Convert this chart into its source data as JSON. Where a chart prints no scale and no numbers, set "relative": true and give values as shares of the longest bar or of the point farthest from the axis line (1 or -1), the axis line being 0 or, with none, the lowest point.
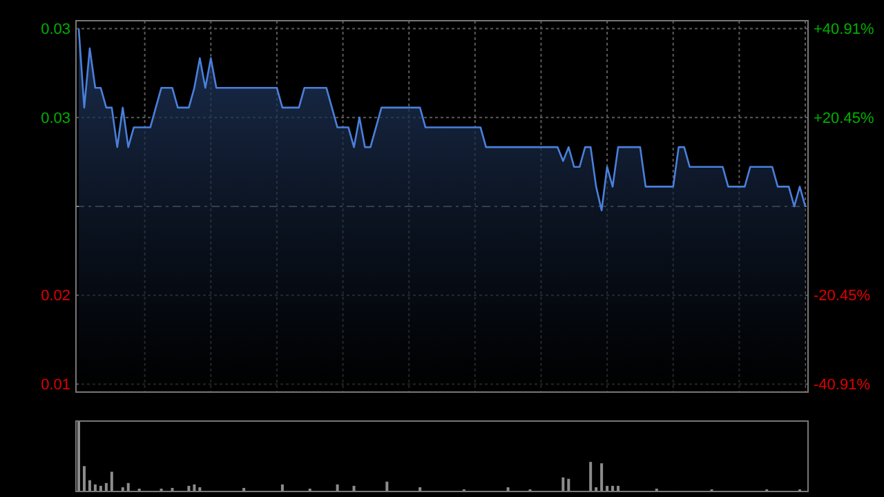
{
  "chart_data": [
    {
      "type": "area",
      "categories": [
        null,
        null,
        null,
        null,
        null,
        null,
        null,
        null,
        null,
        null,
        null,
        null,
        null,
        null,
        null,
        null,
        null,
        null,
        null,
        null,
        null,
        null,
        null,
        null,
        null,
        null,
        null,
        null,
        null,
        null,
        null,
        null,
        null,
        null,
        null,
        null,
        null,
        null,
        null,
        null,
        null,
        null,
        null,
        null,
        null,
        null,
        null,
        null,
        null,
        null,
        null,
        null,
        null,
        null,
        null,
        null,
        null,
        null,
        null,
        null,
        null,
        null,
        null,
        null,
        null,
        null,
        null,
        null,
        null,
        null,
        null,
        null,
        null,
        null,
        null,
        null,
        null,
        null,
        null,
        null,
        null,
        null,
        null,
        null,
        null,
        null,
        null,
        null,
        null,
        null,
        null,
        null,
        null,
        null,
        null,
        null,
        null,
        null,
        null,
        null,
        null,
        null,
        null,
        null,
        null,
        null,
        null,
        null,
        null,
        null,
        null,
        null,
        null,
        null,
        null,
        null,
        null,
        null,
        null,
        null,
        null,
        null,
        null,
        null,
        null,
        null,
        null,
        null,
        null,
        null,
        null,
        null,
        null
      ],
      "ylim": [
        0.0126,
        0.0314
      ],
      "yticks": [
        {
          "value": 0.031,
          "label": "0.03"
        },
        {
          "value": 0.0265,
          "label": "0.03"
        },
        {
          "value": 0.0175,
          "label": "0.02"
        },
        {
          "value": 0.013,
          "label": "0.01"
        }
      ],
      "y2lim": [
        -42.73,
        42.73
      ],
      "y2ticks": [
        {
          "value": 40.91,
          "label": "+40.91%"
        },
        {
          "value": 20.45,
          "label": "+20.45%"
        },
        {
          "value": -20.45,
          "label": "-20.45%"
        },
        {
          "value": -40.91,
          "label": "-40.91%"
        }
      ],
      "grid": true,
      "ref_lines": [
        {
          "axis": "y",
          "value": 0.022,
          "color": "#8a8a8a",
          "line_style": "dashed"
        }
      ],
      "series": [
        {
          "color": "#4a80dc",
          "values": [
            0.031,
            0.027,
            0.03,
            0.028,
            0.028,
            0.027,
            0.027,
            0.025,
            0.027,
            0.025,
            0.026,
            0.026,
            0.026,
            0.026,
            0.027,
            0.028,
            0.028,
            0.028,
            0.027,
            0.027,
            0.027,
            0.028,
            0.0295,
            0.028,
            0.0295,
            0.028,
            0.028,
            0.028,
            0.028,
            0.028,
            0.028,
            0.028,
            0.028,
            0.028,
            0.028,
            0.028,
            0.028,
            0.027,
            0.027,
            0.027,
            0.027,
            0.028,
            0.028,
            0.028,
            0.028,
            0.028,
            0.027,
            0.026,
            0.026,
            0.026,
            0.025,
            0.0265,
            0.025,
            0.025,
            0.026,
            0.027,
            0.027,
            0.027,
            0.027,
            0.027,
            0.027,
            0.027,
            0.027,
            0.026,
            0.026,
            0.026,
            0.026,
            0.026,
            0.026,
            0.026,
            0.026,
            0.026,
            0.026,
            0.026,
            0.025,
            0.025,
            0.025,
            0.025,
            0.025,
            0.025,
            0.025,
            0.025,
            0.025,
            0.025,
            0.025,
            0.025,
            0.025,
            0.025,
            0.0243,
            0.025,
            0.024,
            0.024,
            0.025,
            0.025,
            0.023,
            0.0218,
            0.024,
            0.023,
            0.025,
            0.025,
            0.025,
            0.025,
            0.025,
            0.023,
            0.023,
            0.023,
            0.023,
            0.023,
            0.023,
            0.025,
            0.025,
            0.024,
            0.024,
            0.024,
            0.024,
            0.024,
            0.024,
            0.024,
            0.023,
            0.023,
            0.023,
            0.023,
            0.024,
            0.024,
            0.024,
            0.024,
            0.024,
            0.023,
            0.023,
            0.023,
            0.022,
            0.023,
            0.022
          ]
        }
      ]
    },
    {
      "type": "bar",
      "relative": true,
      "color": "#8c8c8c",
      "categories": [
        null,
        null,
        null,
        null,
        null,
        null,
        null,
        null,
        null,
        null,
        null,
        null,
        null,
        null,
        null,
        null,
        null,
        null,
        null,
        null,
        null,
        null,
        null,
        null,
        null,
        null,
        null,
        null,
        null,
        null,
        null,
        null,
        null,
        null,
        null,
        null,
        null,
        null,
        null,
        null,
        null,
        null,
        null,
        null,
        null,
        null,
        null,
        null,
        null,
        null,
        null,
        null,
        null,
        null,
        null,
        null,
        null,
        null,
        null,
        null,
        null,
        null,
        null,
        null,
        null,
        null,
        null,
        null,
        null,
        null,
        null,
        null,
        null,
        null,
        null,
        null,
        null,
        null,
        null,
        null,
        null,
        null,
        null,
        null,
        null,
        null,
        null,
        null,
        null,
        null,
        null,
        null,
        null,
        null,
        null,
        null,
        null,
        null,
        null,
        null,
        null,
        null,
        null,
        null,
        null,
        null,
        null,
        null,
        null,
        null,
        null,
        null,
        null,
        null,
        null,
        null,
        null,
        null,
        null,
        null,
        null,
        null,
        null,
        null,
        null,
        null,
        null,
        null,
        null,
        null,
        null,
        null,
        null
      ],
      "values": [
        1.0,
        0.36,
        0.16,
        0.1,
        0.08,
        0.12,
        0.28,
        0.01,
        0.06,
        0.12,
        0.01,
        0.04,
        0.01,
        0.01,
        0.01,
        0.04,
        0.01,
        0.05,
        0.01,
        0.01,
        0.08,
        0.1,
        0.06,
        0.01,
        0.01,
        0.01,
        0.01,
        0.01,
        0.01,
        0.01,
        0.05,
        0.01,
        0.01,
        0.01,
        0.01,
        0.01,
        0.01,
        0.1,
        0.01,
        0.01,
        0.01,
        0.01,
        0.04,
        0.01,
        0.01,
        0.01,
        0.01,
        0.1,
        0.01,
        0.01,
        0.08,
        0.01,
        0.01,
        0.01,
        0.01,
        0.01,
        0.14,
        0.01,
        0.01,
        0.01,
        0.01,
        0.01,
        0.06,
        0.01,
        0.01,
        0.01,
        0.01,
        0.01,
        0.01,
        0.01,
        0.03,
        0.01,
        0.01,
        0.01,
        0.01,
        0.01,
        0.01,
        0.01,
        0.06,
        0.01,
        0.01,
        0.01,
        0.03,
        0.01,
        0.01,
        0.01,
        0.01,
        0.01,
        0.2,
        0.18,
        0.01,
        0.01,
        0.01,
        0.42,
        0.06,
        0.4,
        0.08,
        0.08,
        0.08,
        0.01,
        0.01,
        0.01,
        0.01,
        0.01,
        0.01,
        0.04,
        0.01,
        0.01,
        0.01,
        0.01,
        0.01,
        0.01,
        0.01,
        0.01,
        0.01,
        0.03,
        0.01,
        0.01,
        0.01,
        0.01,
        0.01,
        0.01,
        0.01,
        0.01,
        0.01,
        0.03,
        0.01,
        0.01,
        0.01,
        0.01,
        0.01,
        0.03,
        0.01
      ]
    }
  ]
}
